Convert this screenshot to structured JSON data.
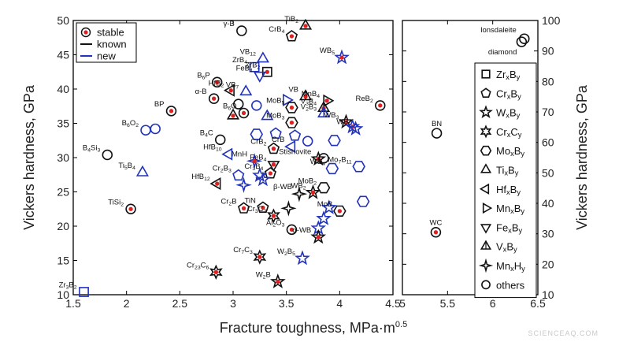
{
  "chart_data": {
    "type": "scatter",
    "xlabel": "Fracture toughness, MPa·m",
    "xlabel_sup": "0.5",
    "ylabel_left": "Vickers hardness, GPa",
    "ylabel_right": "Vickers hardness, GPa",
    "left_panel": {
      "xlim": [
        1.5,
        4.5
      ],
      "ylim": [
        10,
        50
      ],
      "xticks": [
        "1.5",
        "2",
        "2.5",
        "3",
        "3.5",
        "4",
        "4.5"
      ],
      "yticks": [
        "10",
        "15",
        "20",
        "25",
        "30",
        "35",
        "40",
        "45",
        "50"
      ]
    },
    "right_panel": {
      "xlim": [
        5,
        6.5
      ],
      "ylim": [
        10,
        100
      ],
      "xticks": [
        "5",
        "5.5",
        "6",
        "6.5"
      ],
      "yticks": [
        "10",
        "20",
        "30",
        "40",
        "50",
        "60",
        "70",
        "80",
        "90",
        "100"
      ]
    },
    "colors": {
      "known": "#111111",
      "new": "#2233bb",
      "stable_fill": "#e02020"
    },
    "legend_status": [
      {
        "key": "stable",
        "label": "stable"
      },
      {
        "key": "known",
        "label": "known"
      },
      {
        "key": "new",
        "label": "new"
      }
    ],
    "legend_families": [
      {
        "marker": "square",
        "label": "Zr_xB_y"
      },
      {
        "marker": "pentagon",
        "label": "Cr_xB_y"
      },
      {
        "marker": "star5",
        "label": "W_xB_y"
      },
      {
        "marker": "star6",
        "label": "Cr_xC_y"
      },
      {
        "marker": "hexagon",
        "label": "Mo_xB_y"
      },
      {
        "marker": "triangle-up",
        "label": "Ti_xB_y"
      },
      {
        "marker": "triangle-left",
        "label": "Hf_xB_y"
      },
      {
        "marker": "triangle-right",
        "label": "Mn_xB_y"
      },
      {
        "marker": "triangle-down",
        "label": "Fe_xB_y"
      },
      {
        "marker": "triangle-up-filled",
        "label": "V_xB_y"
      },
      {
        "marker": "star4",
        "label": "Mn_xH_y"
      },
      {
        "marker": "circle",
        "label": "others"
      }
    ],
    "points": [
      {
        "x": 3.08,
        "y": 48.5,
        "m": "circle",
        "c": "known",
        "s": false,
        "label": "γ-B"
      },
      {
        "x": 3.68,
        "y": 49.2,
        "m": "triangle-up",
        "c": "known",
        "s": true,
        "label": "TiB_2"
      },
      {
        "x": 3.55,
        "y": 47.7,
        "m": "pentagon",
        "c": "known",
        "s": true,
        "label": "CrB_4"
      },
      {
        "x": 4.02,
        "y": 44.6,
        "m": "star5",
        "c": "new",
        "s": true,
        "label": "WB_5"
      },
      {
        "x": 3.28,
        "y": 44.4,
        "m": "triangle-up",
        "c": "new",
        "s": false,
        "label": "VB_12"
      },
      {
        "x": 3.2,
        "y": 43.2,
        "m": "square",
        "c": "new",
        "s": false,
        "label": "ZrB_4"
      },
      {
        "x": 3.32,
        "y": 42.5,
        "m": "square",
        "c": "known",
        "s": true,
        "label": "ZrB_2"
      },
      {
        "x": 3.25,
        "y": 42.0,
        "m": "triangle-down",
        "c": "new",
        "s": false,
        "label": "FeB_4"
      },
      {
        "x": 2.85,
        "y": 41.0,
        "m": "circle",
        "c": "known",
        "s": true,
        "label": "B_6P"
      },
      {
        "x": 2.98,
        "y": 39.8,
        "m": "triangle-left",
        "c": "known",
        "s": true,
        "label": "HfB_2"
      },
      {
        "x": 3.12,
        "y": 39.6,
        "m": "triangle-up",
        "c": "new",
        "s": false,
        "label": "VB_7"
      },
      {
        "x": 3.68,
        "y": 38.9,
        "m": "triangle-up-filled",
        "c": "known",
        "s": true,
        "label": "VB"
      },
      {
        "x": 3.5,
        "y": 38.4,
        "m": "triangle-right",
        "c": "new",
        "s": false,
        "label": ""
      },
      {
        "x": 3.88,
        "y": 38.3,
        "m": "triangle-right",
        "c": "known",
        "s": true,
        "label": "MnB_4"
      },
      {
        "x": 2.82,
        "y": 38.6,
        "m": "circle",
        "c": "known",
        "s": true,
        "label": "α-B"
      },
      {
        "x": 3.05,
        "y": 37.8,
        "m": "circle",
        "c": "known",
        "s": false,
        "label": ""
      },
      {
        "x": 3.22,
        "y": 37.6,
        "m": "circle",
        "c": "new",
        "s": false,
        "label": ""
      },
      {
        "x": 3.85,
        "y": 37.2,
        "m": "triangle-up-filled",
        "c": "known",
        "s": true,
        "label": "V_3B_4"
      },
      {
        "x": 4.38,
        "y": 37.6,
        "m": "circle",
        "c": "known",
        "s": true,
        "label": "ReB_2"
      },
      {
        "x": 2.42,
        "y": 36.8,
        "m": "circle",
        "c": "known",
        "s": true,
        "label": "BP"
      },
      {
        "x": 3.55,
        "y": 37.3,
        "m": "hexagon",
        "c": "known",
        "s": true,
        "label": "MoB_5"
      },
      {
        "x": 3.85,
        "y": 36.4,
        "m": "triangle-up-filled",
        "c": "new",
        "s": false,
        "label": "V_2B_3"
      },
      {
        "x": 3.0,
        "y": 36.1,
        "m": "triangle-up",
        "c": "known",
        "s": true,
        "label": ""
      },
      {
        "x": 3.1,
        "y": 36.5,
        "m": "circle",
        "c": "known",
        "s": true,
        "label": "B_6O"
      },
      {
        "x": 3.32,
        "y": 36.0,
        "m": "triangle-up",
        "c": "new",
        "s": false,
        "label": ""
      },
      {
        "x": 3.55,
        "y": 35.1,
        "m": "hexagon",
        "c": "known",
        "s": true,
        "label": "MoB_3"
      },
      {
        "x": 4.06,
        "y": 35.2,
        "m": "star5",
        "c": "known",
        "s": true,
        "label": "WB_3"
      },
      {
        "x": 4.12,
        "y": 34.5,
        "m": "star5",
        "c": "new",
        "s": true,
        "label": ""
      },
      {
        "x": 4.15,
        "y": 34.2,
        "m": "star5",
        "c": "new",
        "s": false,
        "label": "WB"
      },
      {
        "x": 2.18,
        "y": 34.0,
        "m": "circle",
        "c": "new",
        "s": false,
        "label": "B_6O_2"
      },
      {
        "x": 2.27,
        "y": 34.2,
        "m": "circle",
        "c": "new",
        "s": false,
        "label": ""
      },
      {
        "x": 3.4,
        "y": 33.5,
        "m": "pentagon",
        "c": "new",
        "s": false,
        "label": ""
      },
      {
        "x": 3.58,
        "y": 33.2,
        "m": "pentagon",
        "c": "new",
        "s": false,
        "label": ""
      },
      {
        "x": 3.22,
        "y": 33.4,
        "m": "hexagon",
        "c": "new",
        "s": false,
        "label": ""
      },
      {
        "x": 2.88,
        "y": 32.6,
        "m": "circle",
        "c": "known",
        "s": false,
        "label": "B_4C"
      },
      {
        "x": 3.7,
        "y": 32.4,
        "m": "circle",
        "c": "new",
        "s": false,
        "label": ""
      },
      {
        "x": 3.95,
        "y": 32.5,
        "m": "hexagon",
        "c": "new",
        "s": false,
        "label": ""
      },
      {
        "x": 3.38,
        "y": 31.3,
        "m": "pentagon",
        "c": "known",
        "s": true,
        "label": "CrB_2"
      },
      {
        "x": 3.55,
        "y": 31.6,
        "m": "triangle-left",
        "c": "new",
        "s": false,
        "label": "CrB"
      },
      {
        "x": 2.96,
        "y": 30.5,
        "m": "triangle-left",
        "c": "new",
        "s": false,
        "label": "HfB_10"
      },
      {
        "x": 1.82,
        "y": 30.4,
        "m": "circle",
        "c": "known",
        "s": false,
        "label": "B_4Si_3"
      },
      {
        "x": 3.8,
        "y": 29.8,
        "m": "star5",
        "c": "known",
        "s": true,
        "label": "Stishovite"
      },
      {
        "x": 3.85,
        "y": 29.9,
        "m": "circle",
        "c": "known",
        "s": false,
        "label": ""
      },
      {
        "x": 3.2,
        "y": 29.5,
        "m": "star4",
        "c": "new",
        "s": true,
        "label": "MnH"
      },
      {
        "x": 3.38,
        "y": 29.0,
        "m": "triangle-down",
        "c": "known",
        "s": true,
        "label": "FeB_4"
      },
      {
        "x": 3.35,
        "y": 27.7,
        "m": "pentagon",
        "c": "known",
        "s": true,
        "label": "Cr_3B_4"
      },
      {
        "x": 4.18,
        "y": 28.7,
        "m": "hexagon",
        "c": "new",
        "s": false,
        "label": "Mo_7B_11"
      },
      {
        "x": 3.93,
        "y": 28.4,
        "m": "hexagon",
        "c": "new",
        "s": false,
        "label": "WB_4"
      },
      {
        "x": 2.15,
        "y": 27.8,
        "m": "triangle-up",
        "c": "new",
        "s": false,
        "label": "Ti_5B_4"
      },
      {
        "x": 3.05,
        "y": 27.4,
        "m": "pentagon",
        "c": "new",
        "s": false,
        "label": "Cr_2B_3"
      },
      {
        "x": 3.25,
        "y": 27.4,
        "m": "star5",
        "c": "new",
        "s": false,
        "label": ""
      },
      {
        "x": 3.28,
        "y": 26.8,
        "m": "star5",
        "c": "new",
        "s": false,
        "label": ""
      },
      {
        "x": 2.85,
        "y": 26.2,
        "m": "triangle-left",
        "c": "known",
        "s": true,
        "label": "HfB_12"
      },
      {
        "x": 3.1,
        "y": 26.0,
        "m": "star4",
        "c": "new",
        "s": false,
        "label": ""
      },
      {
        "x": 3.75,
        "y": 24.9,
        "m": "star5",
        "c": "known",
        "s": true,
        "label": "WB_2"
      },
      {
        "x": 3.85,
        "y": 25.6,
        "m": "hexagon",
        "c": "known",
        "s": false,
        "label": "MoB_2"
      },
      {
        "x": 4.22,
        "y": 23.6,
        "m": "hexagon",
        "c": "new",
        "s": false,
        "label": ""
      },
      {
        "x": 3.62,
        "y": 24.7,
        "m": "star4",
        "c": "known",
        "s": false,
        "label": "β-WB"
      },
      {
        "x": 3.28,
        "y": 22.7,
        "m": "pentagon",
        "c": "known",
        "s": true,
        "label": "TiN"
      },
      {
        "x": 3.1,
        "y": 22.6,
        "m": "pentagon",
        "c": "known",
        "s": true,
        "label": "Cr_2B"
      },
      {
        "x": 3.38,
        "y": 21.5,
        "m": "star6",
        "c": "known",
        "s": true,
        "label": "Cr_3C_2"
      },
      {
        "x": 3.52,
        "y": 22.6,
        "m": "star4",
        "c": "known",
        "s": false,
        "label": ""
      },
      {
        "x": 3.9,
        "y": 22.7,
        "m": "star5",
        "c": "new",
        "s": false,
        "label": ""
      },
      {
        "x": 4.0,
        "y": 22.2,
        "m": "hexagon",
        "c": "known",
        "s": true,
        "label": "MoB"
      },
      {
        "x": 3.85,
        "y": 21.1,
        "m": "star5",
        "c": "new",
        "s": false,
        "label": ""
      },
      {
        "x": 3.8,
        "y": 19.7,
        "m": "star5",
        "c": "new",
        "s": false,
        "label": ""
      },
      {
        "x": 3.55,
        "y": 19.5,
        "m": "circle",
        "c": "known",
        "s": true,
        "label": "Al_2O_3"
      },
      {
        "x": 3.8,
        "y": 18.4,
        "m": "star5",
        "c": "known",
        "s": true,
        "label": "α-WB"
      },
      {
        "x": 3.25,
        "y": 15.5,
        "m": "star6",
        "c": "known",
        "s": true,
        "label": "Cr_7C_3"
      },
      {
        "x": 3.65,
        "y": 15.3,
        "m": "star5",
        "c": "new",
        "s": false,
        "label": "W_2B_5"
      },
      {
        "x": 2.84,
        "y": 13.3,
        "m": "star6",
        "c": "known",
        "s": true,
        "label": "Cr_23C_6"
      },
      {
        "x": 3.42,
        "y": 11.9,
        "m": "star5",
        "c": "known",
        "s": true,
        "label": "W_2B"
      },
      {
        "x": 2.04,
        "y": 22.5,
        "m": "circle",
        "c": "known",
        "s": true,
        "label": "TiSi_2"
      },
      {
        "x": 1.6,
        "y": 10.4,
        "m": "square",
        "c": "new",
        "s": false,
        "label": "Zr_3B_2"
      }
    ],
    "right_points": [
      {
        "x": 6.35,
        "y": 94.0,
        "m": "circle",
        "c": "known",
        "s": false,
        "label": "lonsdaleite"
      },
      {
        "x": 6.32,
        "y": 93.0,
        "m": "circle",
        "c": "known",
        "s": false,
        "label": "diamond"
      },
      {
        "x": 5.38,
        "y": 63.0,
        "m": "circle",
        "c": "known",
        "s": false,
        "label": "BN"
      },
      {
        "x": 5.37,
        "y": 30.5,
        "m": "circle",
        "c": "known",
        "s": true,
        "label": "WC"
      }
    ]
  },
  "watermark": "SCIENCEAQ.COM"
}
